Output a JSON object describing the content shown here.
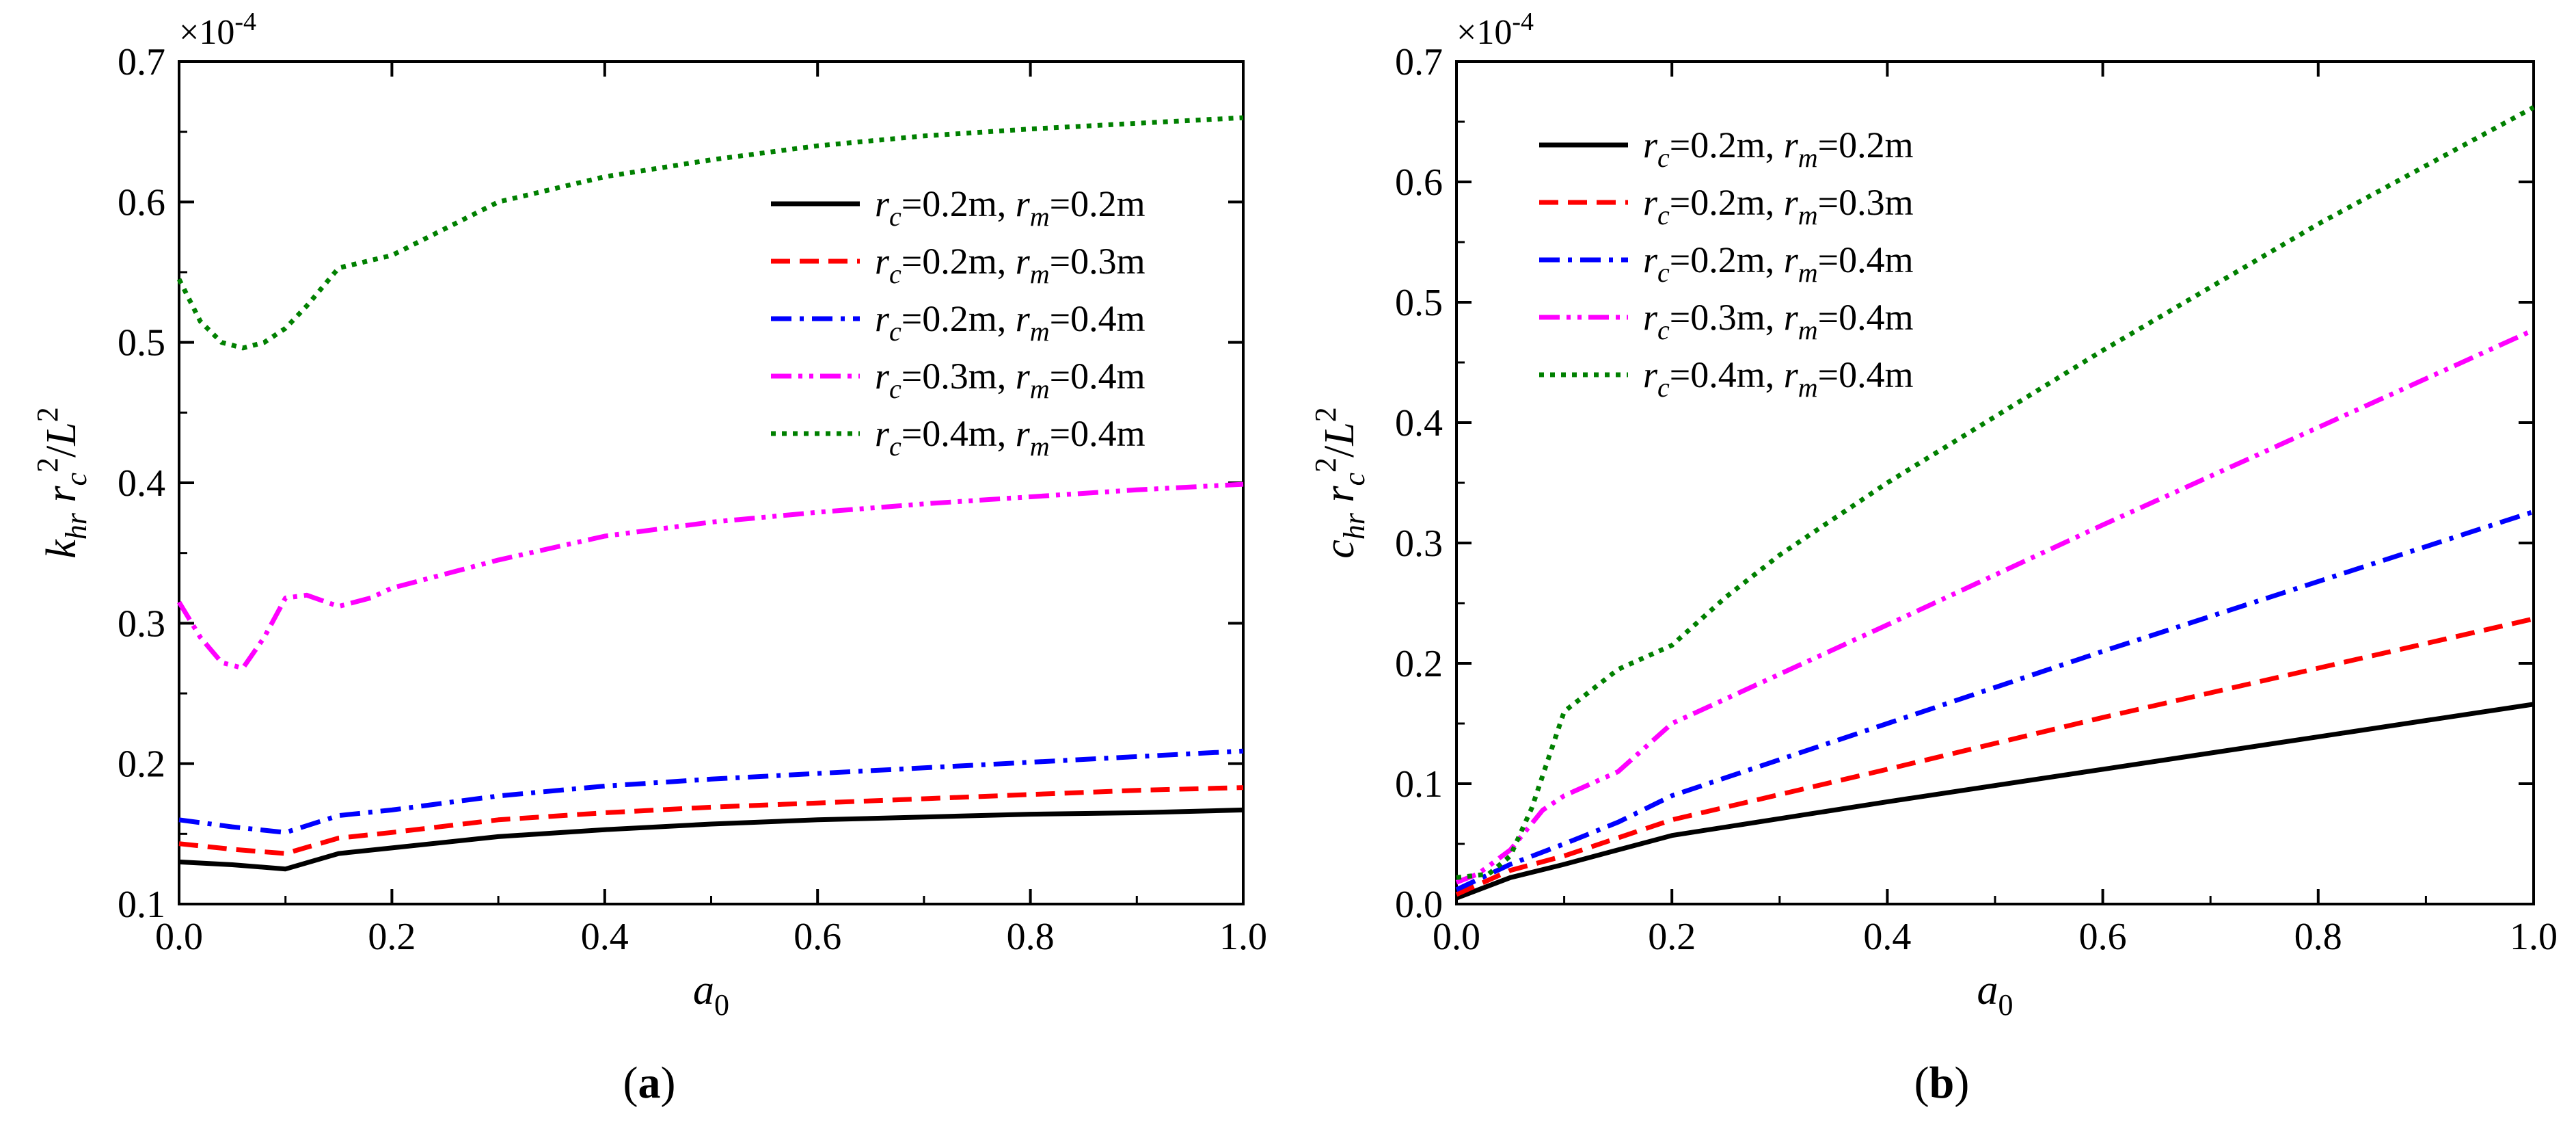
{
  "colors": {
    "black": "#000000",
    "red": "#ff0000",
    "blue": "#0000ff",
    "magenta": "#ff00ff",
    "green": "#008000"
  },
  "chart_data": [
    {
      "type": "line",
      "panel_label": "(a)",
      "panel_letter": "a",
      "title": "",
      "xlabel": "a0",
      "xlabel_main": "a",
      "xlabel_sub": "0",
      "ylabel": "k_hr r_c^2 / L^2",
      "scale_note": "×10-4",
      "scale_base": "×10",
      "scale_exp": "-4",
      "xlim": [
        0,
        1.0
      ],
      "ylim": [
        0.1,
        0.7
      ],
      "xticks": [
        0,
        0.2,
        0.4,
        0.6,
        0.8,
        1.0
      ],
      "xtick_labels": [
        "0.0",
        "0.2",
        "0.4",
        "0.6",
        "0.8",
        "1.0"
      ],
      "yticks": [
        0.1,
        0.2,
        0.3,
        0.4,
        0.5,
        0.6,
        0.7
      ],
      "ytick_labels": [
        "0.1",
        "0.2",
        "0.3",
        "0.4",
        "0.5",
        "0.6",
        "0.7"
      ],
      "legend_position": "right",
      "series": [
        {
          "name": "rc=0.2m, rm=0.2m",
          "rc": "0.2m",
          "rm": "0.2m",
          "color": "#000000",
          "dash": "solid",
          "x": [
            0,
            0.05,
            0.1,
            0.15,
            0.2,
            0.3,
            0.4,
            0.5,
            0.6,
            0.7,
            0.8,
            0.9,
            1.0
          ],
          "y": [
            0.13,
            0.128,
            0.125,
            0.136,
            0.14,
            0.148,
            0.153,
            0.157,
            0.16,
            0.162,
            0.164,
            0.165,
            0.167
          ]
        },
        {
          "name": "rc=0.2m, rm=0.3m",
          "rc": "0.2m",
          "rm": "0.3m",
          "color": "#ff0000",
          "dash": "dash",
          "x": [
            0,
            0.05,
            0.1,
            0.15,
            0.2,
            0.3,
            0.4,
            0.5,
            0.6,
            0.7,
            0.8,
            0.9,
            1.0
          ],
          "y": [
            0.143,
            0.139,
            0.136,
            0.147,
            0.151,
            0.16,
            0.165,
            0.169,
            0.172,
            0.175,
            0.178,
            0.181,
            0.183
          ]
        },
        {
          "name": "rc=0.2m, rm=0.4m",
          "rc": "0.2m",
          "rm": "0.4m",
          "color": "#0000ff",
          "dash": "dashdot",
          "x": [
            0,
            0.05,
            0.1,
            0.15,
            0.2,
            0.3,
            0.4,
            0.5,
            0.6,
            0.7,
            0.8,
            0.9,
            1.0
          ],
          "y": [
            0.16,
            0.155,
            0.151,
            0.163,
            0.167,
            0.177,
            0.184,
            0.189,
            0.193,
            0.197,
            0.201,
            0.205,
            0.209
          ]
        },
        {
          "name": "rc=0.3m, rm=0.4m",
          "rc": "0.3m",
          "rm": "0.4m",
          "color": "#ff00ff",
          "dash": "dashdotdot",
          "x": [
            0,
            0.02,
            0.04,
            0.06,
            0.08,
            0.1,
            0.12,
            0.15,
            0.18,
            0.2,
            0.3,
            0.4,
            0.5,
            0.6,
            0.7,
            0.8,
            0.9,
            1.0
          ],
          "y": [
            0.315,
            0.29,
            0.272,
            0.268,
            0.29,
            0.318,
            0.32,
            0.312,
            0.318,
            0.325,
            0.345,
            0.362,
            0.372,
            0.379,
            0.385,
            0.39,
            0.395,
            0.399
          ]
        },
        {
          "name": "rc=0.4m, rm=0.4m",
          "rc": "0.4m",
          "rm": "0.4m",
          "color": "#008000",
          "dash": "dot",
          "x": [
            0,
            0.02,
            0.04,
            0.06,
            0.08,
            0.1,
            0.12,
            0.15,
            0.2,
            0.3,
            0.4,
            0.5,
            0.6,
            0.7,
            0.8,
            0.9,
            1.0
          ],
          "y": [
            0.545,
            0.515,
            0.5,
            0.496,
            0.5,
            0.51,
            0.526,
            0.553,
            0.562,
            0.6,
            0.618,
            0.63,
            0.64,
            0.647,
            0.652,
            0.656,
            0.66
          ]
        }
      ]
    },
    {
      "type": "line",
      "panel_label": "(b)",
      "panel_letter": "b",
      "title": "",
      "xlabel": "a0",
      "xlabel_main": "a",
      "xlabel_sub": "0",
      "ylabel": "c_hr r_c^2 / L^2",
      "scale_note": "×10-4",
      "scale_base": "×10",
      "scale_exp": "-4",
      "xlim": [
        0,
        1.0
      ],
      "ylim": [
        0.0,
        0.7
      ],
      "xticks": [
        0,
        0.2,
        0.4,
        0.6,
        0.8,
        1.0
      ],
      "xtick_labels": [
        "0.0",
        "0.2",
        "0.4",
        "0.6",
        "0.8",
        "1.0"
      ],
      "yticks": [
        0.0,
        0.1,
        0.2,
        0.3,
        0.4,
        0.5,
        0.6,
        0.7
      ],
      "ytick_labels": [
        "0.0",
        "0.1",
        "0.2",
        "0.3",
        "0.4",
        "0.5",
        "0.6",
        "0.7"
      ],
      "legend_position": "top-left",
      "series": [
        {
          "name": "rc=0.2m, rm=0.2m",
          "rc": "0.2m",
          "rm": "0.2m",
          "color": "#000000",
          "dash": "solid",
          "x": [
            0,
            0.05,
            0.1,
            0.15,
            0.2,
            0.4,
            0.6,
            0.8,
            1.0
          ],
          "y": [
            0.005,
            0.022,
            0.033,
            0.045,
            0.057,
            0.085,
            0.112,
            0.139,
            0.166
          ]
        },
        {
          "name": "rc=0.2m, rm=0.3m",
          "rc": "0.2m",
          "rm": "0.3m",
          "color": "#ff0000",
          "dash": "dash",
          "x": [
            0,
            0.05,
            0.1,
            0.15,
            0.2,
            0.4,
            0.6,
            0.8,
            1.0
          ],
          "y": [
            0.008,
            0.028,
            0.04,
            0.055,
            0.07,
            0.112,
            0.155,
            0.196,
            0.237
          ]
        },
        {
          "name": "rc=0.2m, rm=0.4m",
          "rc": "0.2m",
          "rm": "0.4m",
          "color": "#0000ff",
          "dash": "dashdot",
          "x": [
            0,
            0.05,
            0.1,
            0.15,
            0.2,
            0.4,
            0.6,
            0.8,
            1.0
          ],
          "y": [
            0.012,
            0.033,
            0.05,
            0.068,
            0.09,
            0.15,
            0.21,
            0.268,
            0.326
          ]
        },
        {
          "name": "rc=0.3m, rm=0.4m",
          "rc": "0.3m",
          "rm": "0.4m",
          "color": "#ff00ff",
          "dash": "dashdotdot",
          "x": [
            0,
            0.02,
            0.05,
            0.08,
            0.1,
            0.15,
            0.2,
            0.4,
            0.6,
            0.8,
            1.0
          ],
          "y": [
            0.018,
            0.025,
            0.045,
            0.078,
            0.09,
            0.11,
            0.15,
            0.232,
            0.315,
            0.396,
            0.477
          ]
        },
        {
          "name": "rc=0.4m, rm=0.4m",
          "rc": "0.4m",
          "rm": "0.4m",
          "color": "#008000",
          "dash": "dot",
          "x": [
            0,
            0.03,
            0.05,
            0.07,
            0.1,
            0.15,
            0.2,
            0.25,
            0.3,
            0.4,
            0.6,
            0.8,
            1.0
          ],
          "y": [
            0.022,
            0.025,
            0.04,
            0.08,
            0.16,
            0.195,
            0.215,
            0.255,
            0.29,
            0.35,
            0.46,
            0.565,
            0.662
          ]
        }
      ]
    }
  ]
}
